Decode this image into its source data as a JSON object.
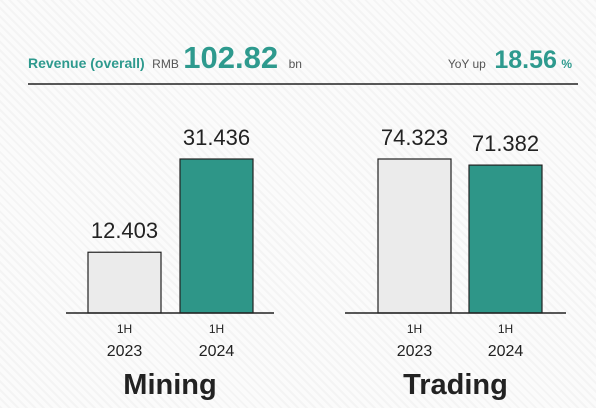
{
  "header": {
    "label": "Revenue (overall)",
    "currency": "RMB",
    "amount": "102.82",
    "unit": "bn",
    "yoy_label": "YoY up",
    "yoy_value": "18.56",
    "yoy_unit": "%"
  },
  "chart_data": [
    {
      "type": "bar",
      "title": "Mining",
      "categories": [
        [
          "1H",
          "2023"
        ],
        [
          "1H",
          "2024"
        ]
      ],
      "values": [
        12.403,
        31.436
      ],
      "colors": [
        "#ebebeb",
        "#2e9688"
      ]
    },
    {
      "type": "bar",
      "title": "Trading",
      "categories": [
        [
          "1H",
          "2023"
        ],
        [
          "1H",
          "2024"
        ]
      ],
      "values": [
        74.323,
        71.382
      ],
      "colors": [
        "#ebebeb",
        "#2e9688"
      ]
    }
  ]
}
